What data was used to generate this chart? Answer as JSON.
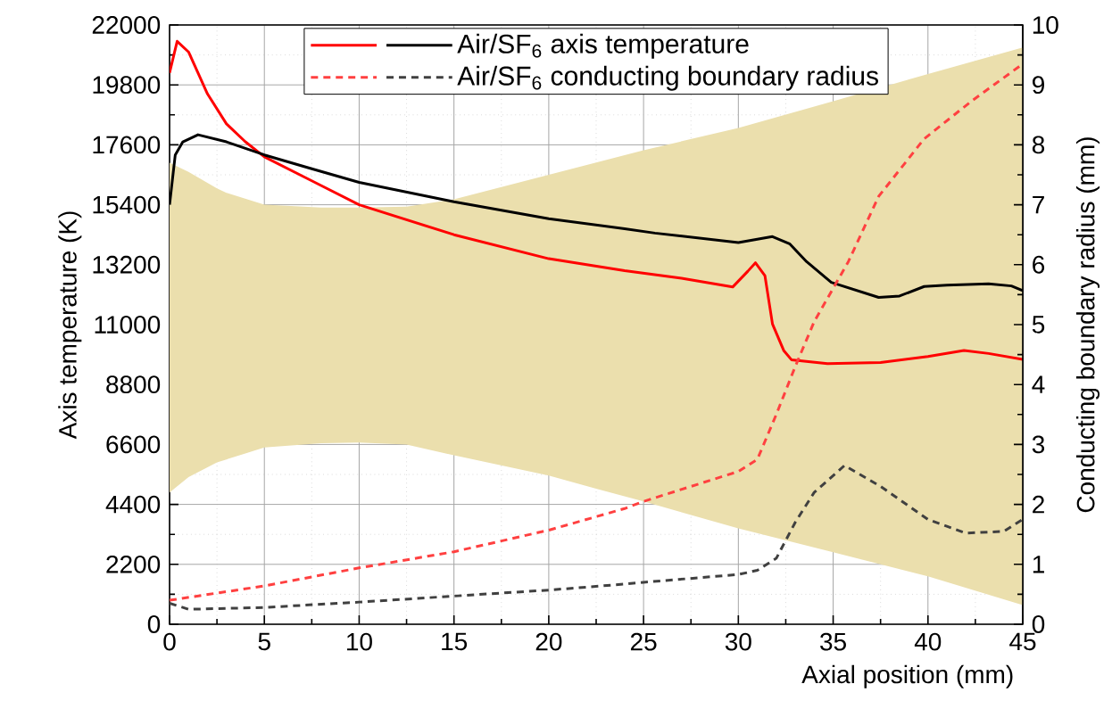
{
  "chart_data": {
    "type": "line",
    "xlabel": "Axial position (mm)",
    "ylabel": "Axis temperature (K)",
    "y2label": "Conducting boundary radius (mm)",
    "xlim": [
      0,
      45
    ],
    "xticks": [
      0,
      5,
      10,
      15,
      20,
      25,
      30,
      35,
      40,
      45
    ],
    "ylim": [
      0,
      22000
    ],
    "yticks": [
      0,
      2200,
      4400,
      6600,
      8800,
      11000,
      13200,
      15400,
      17600,
      19800,
      22000
    ],
    "y2lim": [
      0,
      10
    ],
    "y2ticks": [
      0,
      1,
      2,
      3,
      4,
      5,
      6,
      7,
      8,
      9,
      10
    ],
    "grid": true,
    "legend": "top",
    "series": [
      {
        "color": "#ebdfad",
        "x": [
          0,
          1,
          2.5,
          3,
          5,
          8,
          10,
          12.5,
          15,
          20,
          22.5,
          25,
          30,
          35,
          40,
          45
        ],
        "values": [
          null,
          null,
          null,
          null,
          null,
          null,
          null,
          null,
          null,
          null,
          null,
          null,
          null,
          null,
          null,
          null
        ],
        "upper": [
          16940,
          16610,
          16000,
          15840,
          15400,
          15300,
          15300,
          15330,
          15600,
          16500,
          16950,
          17400,
          18220,
          19200,
          20200,
          21170
        ],
        "lower": [
          4840,
          5400,
          5940,
          6050,
          6490,
          6650,
          6670,
          6600,
          6200,
          5460,
          4980,
          4510,
          3520,
          2640,
          1760,
          700
        ]
      },
      {
        "color": "#ff0000",
        "line_style": "solid",
        "x": [
          0,
          0.4,
          1,
          2,
          3,
          4,
          5,
          7.5,
          10,
          15,
          20,
          24,
          27,
          29.7,
          30.5,
          30.9,
          31.4,
          31.8,
          32.4,
          32.8,
          34.7,
          37.5,
          40,
          41.9,
          43.2,
          45
        ],
        "values": [
          20240,
          21400,
          21010,
          19470,
          18370,
          17710,
          17160,
          16280,
          15400,
          14300,
          13420,
          12980,
          12700,
          12380,
          12960,
          13270,
          12800,
          11020,
          10040,
          9710,
          9570,
          9610,
          9830,
          10050,
          9940,
          9720
        ]
      },
      {
        "name": "Air/SF$_{6}$ axis temperature",
        "color": "#000000",
        "line_style": "solid",
        "x": [
          0,
          0.3,
          0.7,
          1.5,
          3,
          5,
          7.5,
          10,
          15,
          20,
          24,
          25.6,
          30,
          31.8,
          32.7,
          33.6,
          34.9,
          37.4,
          38.5,
          39.8,
          41,
          43.2,
          44.4,
          45
        ],
        "values": [
          15400,
          17230,
          17710,
          17970,
          17710,
          17230,
          16720,
          16220,
          15510,
          14890,
          14520,
          14360,
          14010,
          14230,
          13970,
          13310,
          12550,
          12000,
          12050,
          12400,
          12450,
          12500,
          12420,
          12250
        ]
      },
      {
        "axis": "y2",
        "color": "#ff4040",
        "line_style": "dashed",
        "x": [
          0,
          5,
          10,
          15,
          20,
          24,
          25,
          30,
          31,
          32,
          33,
          34,
          35.8,
          37.4,
          39.8,
          42.3,
          45
        ],
        "values": [
          0.4,
          0.64,
          0.94,
          1.21,
          1.57,
          1.93,
          2.05,
          2.55,
          2.75,
          3.5,
          4.3,
          5.05,
          6.05,
          7.14,
          8.1,
          8.73,
          9.35
        ]
      },
      {
        "axis": "y2",
        "name": "Air/SF$_{6}$ conducting boundary radius",
        "color": "#404040",
        "line_style": "dashed",
        "x": [
          0,
          1,
          5,
          10,
          15,
          20,
          24,
          25,
          30,
          31,
          32,
          33,
          34,
          35.6,
          37.5,
          40,
          42,
          44,
          45
        ],
        "values": [
          0.35,
          0.25,
          0.28,
          0.37,
          0.47,
          0.57,
          0.67,
          0.7,
          0.83,
          0.9,
          1.1,
          1.7,
          2.2,
          2.65,
          2.3,
          1.75,
          1.52,
          1.55,
          1.75
        ]
      }
    ]
  }
}
